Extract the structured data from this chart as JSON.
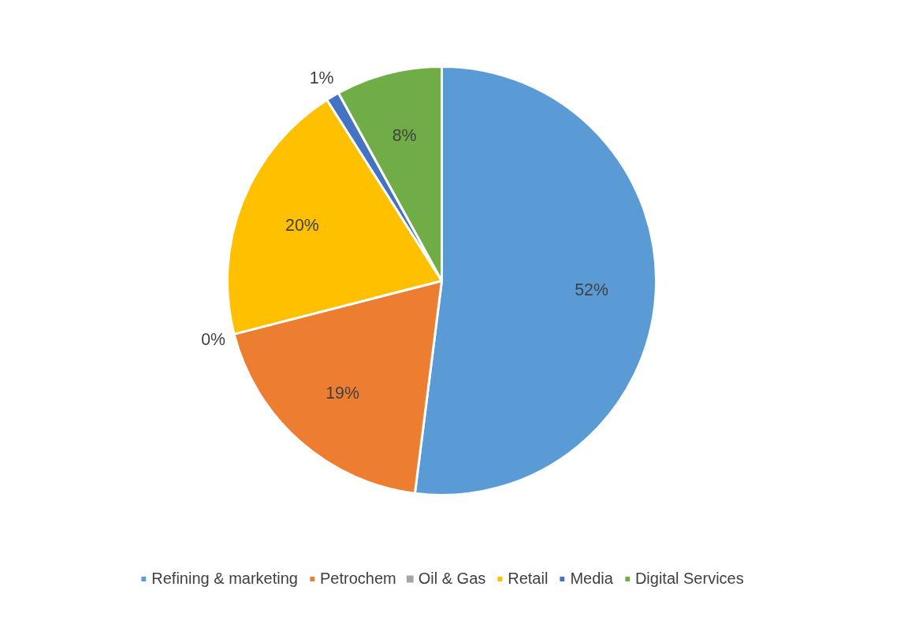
{
  "chart_data": {
    "type": "pie",
    "categories": [
      "Refining & marketing",
      "Petrochem",
      "Oil & Gas",
      "Retail",
      "Media",
      "Digital Services"
    ],
    "values": [
      52,
      19,
      0,
      20,
      1,
      8
    ],
    "colors": [
      "#5b9bd5",
      "#ed7d31",
      "#a5a5a5",
      "#ffc000",
      "#4472c4",
      "#70ad47"
    ],
    "value_labels": [
      "52%",
      "19%",
      "0%",
      "20%",
      "1%",
      "8%"
    ],
    "legend": "bottom"
  }
}
